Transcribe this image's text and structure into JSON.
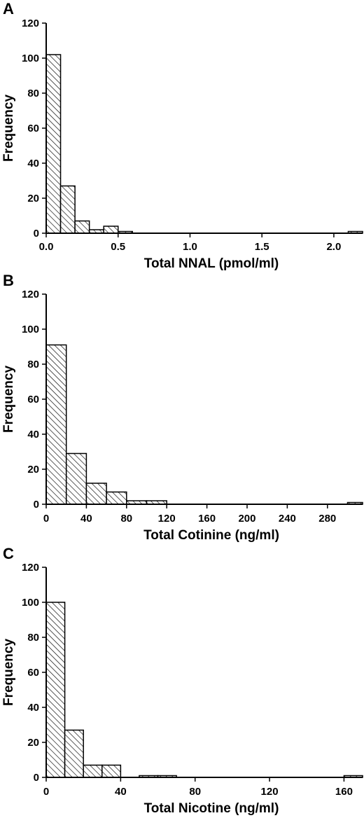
{
  "chart_data": [
    {
      "type": "bar",
      "panel_label": "A",
      "xlabel": "Total NNAL (pmol/ml)",
      "ylabel": "Frequency",
      "ylim": [
        0,
        120
      ],
      "yticks": [
        0,
        20,
        40,
        60,
        80,
        100,
        120
      ],
      "xlim": [
        0,
        2.2
      ],
      "xticks": [
        0.0,
        0.5,
        1.0,
        1.5,
        2.0
      ],
      "xtick_labels": [
        "0.0",
        "0.5",
        "1.0",
        "1.5",
        "2.0"
      ],
      "bin_width": 0.1,
      "bin_starts": [
        0.0,
        0.1,
        0.2,
        0.3,
        0.4,
        0.5,
        2.1
      ],
      "values": [
        102,
        27,
        7,
        2,
        4,
        1,
        1
      ],
      "grid": false
    },
    {
      "type": "bar",
      "panel_label": "B",
      "xlabel": "Total Cotinine (ng/ml)",
      "ylabel": "Frequency",
      "ylim": [
        0,
        120
      ],
      "yticks": [
        0,
        20,
        40,
        60,
        80,
        100,
        120
      ],
      "xlim": [
        0,
        315
      ],
      "xticks": [
        0,
        40,
        80,
        120,
        160,
        200,
        240,
        280
      ],
      "xtick_labels": [
        "0",
        "40",
        "80",
        "120",
        "160",
        "200",
        "240",
        "280"
      ],
      "bin_width": 20,
      "bin_starts": [
        0,
        20,
        40,
        60,
        80,
        100,
        300
      ],
      "values": [
        91,
        29,
        12,
        7,
        2,
        2,
        1
      ],
      "grid": false
    },
    {
      "type": "bar",
      "panel_label": "C",
      "xlabel": "Total Nicotine (ng/ml)",
      "ylabel": "Frequency",
      "ylim": [
        0,
        120
      ],
      "yticks": [
        0,
        20,
        40,
        60,
        80,
        100,
        120
      ],
      "xlim": [
        0,
        170
      ],
      "xticks": [
        0,
        40,
        80,
        120,
        160
      ],
      "xtick_labels": [
        "0",
        "40",
        "80",
        "120",
        "160"
      ],
      "bin_width": 10,
      "bin_starts": [
        0,
        10,
        20,
        30,
        50,
        60,
        160
      ],
      "values": [
        100,
        27,
        7,
        7,
        1,
        1,
        1
      ],
      "grid": false
    }
  ],
  "colors": {
    "bar_fill_pattern": "#000000",
    "bar_stroke": "#000000",
    "background": "#ffffff"
  }
}
